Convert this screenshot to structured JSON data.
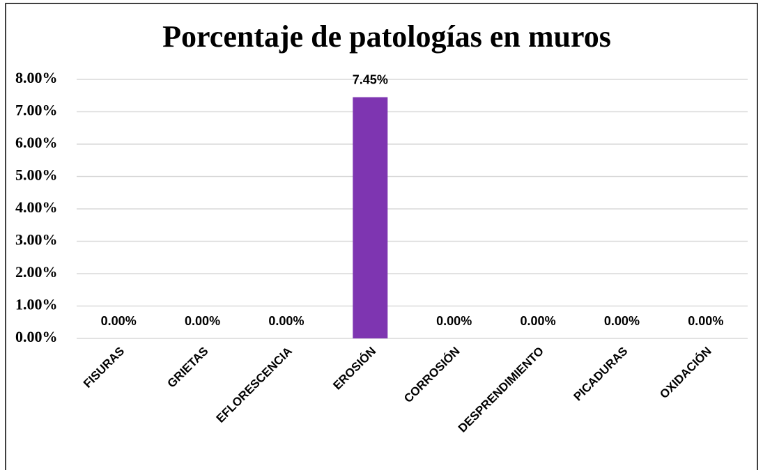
{
  "chart_data": {
    "type": "bar",
    "title": "Porcentaje de patologías en muros",
    "categories": [
      "FISURAS",
      "GRIETAS",
      "EFLORESCENCIA",
      "EROSIÓN",
      "CORROSIÓN",
      "DESPRENDIMIENTO",
      "PICADURAS",
      "OXIDACIÓN"
    ],
    "values": [
      0,
      0,
      0,
      7.45,
      0,
      0,
      0,
      0
    ],
    "value_labels": [
      "0.00%",
      "0.00%",
      "0.00%",
      "7.45%",
      "0.00%",
      "0.00%",
      "0.00%",
      "0.00%"
    ],
    "color": "#7e35b1",
    "ylim": [
      0,
      8
    ],
    "yticks": [
      {
        "value": 0,
        "label": "0.00%"
      },
      {
        "value": 1,
        "label": "1.00%"
      },
      {
        "value": 2,
        "label": "2.00%"
      },
      {
        "value": 3,
        "label": "3.00%"
      },
      {
        "value": 4,
        "label": "4.00%"
      },
      {
        "value": 5,
        "label": "5.00%"
      },
      {
        "value": 6,
        "label": "6.00%"
      },
      {
        "value": 7,
        "label": "7.00%"
      },
      {
        "value": 8,
        "label": "8.00%"
      }
    ],
    "grid": true
  }
}
